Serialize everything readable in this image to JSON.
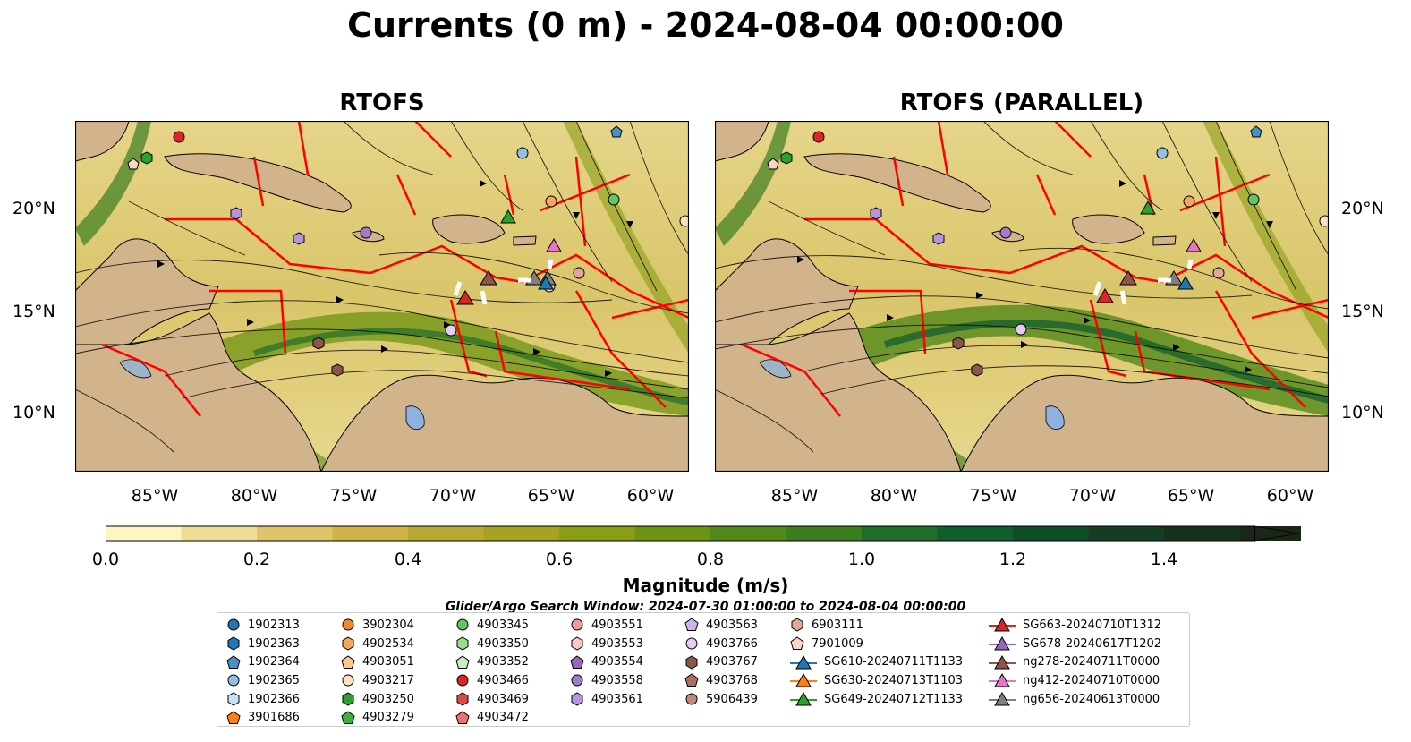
{
  "title": "Currents (0 m) - 2024-08-04 00:00:00",
  "panels": [
    {
      "title": "RTOFS"
    },
    {
      "title": "RTOFS (PARALLEL)"
    }
  ],
  "axes": {
    "lat_labels": [
      "20°N",
      "15°N",
      "10°N"
    ],
    "lon_labels": [
      "85°W",
      "80°W",
      "75°W",
      "70°W",
      "65°W",
      "60°W"
    ]
  },
  "colorbar": {
    "title": "Magnitude (m/s)",
    "tick_labels": [
      "0.0",
      "0.2",
      "0.4",
      "0.6",
      "0.8",
      "1.0",
      "1.2",
      "1.4"
    ],
    "colors": [
      "#fdf6c2",
      "#eedd95",
      "#dfc56a",
      "#d0b448",
      "#b9a832",
      "#a6a224",
      "#899d16",
      "#6e9312",
      "#528819",
      "#3b7d1f",
      "#1f6d2a",
      "#125e2e",
      "#0f4f28",
      "#143d21",
      "#17301b",
      "#1a2618"
    ]
  },
  "search_window": "Glider/Argo Search Window: 2024-07-30 01:00:00 to 2024-08-04 00:00:00",
  "legend": [
    [
      {
        "label": "1902313",
        "shape": "circle",
        "color": "#1f77b4"
      },
      {
        "label": "1902363",
        "shape": "hexagon",
        "color": "#1f77b4"
      },
      {
        "label": "1902364",
        "shape": "pentagon",
        "color": "#4a90c8"
      },
      {
        "label": "1902365",
        "shape": "circle",
        "color": "#8ec0e8"
      },
      {
        "label": "1902366",
        "shape": "hexagon",
        "color": "#c6e0f4"
      },
      {
        "label": "3901686",
        "shape": "pentagon",
        "color": "#ff7f0e"
      }
    ],
    [
      {
        "label": "3902304",
        "shape": "circle",
        "color": "#f08a2c"
      },
      {
        "label": "4902534",
        "shape": "hexagon",
        "color": "#f5a85c"
      },
      {
        "label": "4903051",
        "shape": "pentagon",
        "color": "#fcc68e"
      },
      {
        "label": "4903217",
        "shape": "circle",
        "color": "#fde0bf"
      },
      {
        "label": "4903250",
        "shape": "hexagon",
        "color": "#2ca02c"
      },
      {
        "label": "4903279",
        "shape": "pentagon",
        "color": "#3cb043"
      }
    ],
    [
      {
        "label": "4903345",
        "shape": "circle",
        "color": "#66c266"
      },
      {
        "label": "4903350",
        "shape": "hexagon",
        "color": "#98df8a"
      },
      {
        "label": "4903352",
        "shape": "pentagon",
        "color": "#c8f0c0"
      },
      {
        "label": "4903466",
        "shape": "circle",
        "color": "#d62728"
      },
      {
        "label": "4903469",
        "shape": "hexagon",
        "color": "#e04848"
      },
      {
        "label": "4903472",
        "shape": "pentagon",
        "color": "#f07070"
      }
    ],
    [
      {
        "label": "4903551",
        "shape": "circle",
        "color": "#f29a9a"
      },
      {
        "label": "4903553",
        "shape": "hexagon",
        "color": "#fcc6c6"
      },
      {
        "label": "4903554",
        "shape": "pentagon",
        "color": "#9467bd"
      },
      {
        "label": "4903558",
        "shape": "circle",
        "color": "#a27ccc"
      },
      {
        "label": "4903561",
        "shape": "hexagon",
        "color": "#b496dc"
      }
    ],
    [
      {
        "label": "4903563",
        "shape": "pentagon",
        "color": "#cdb4ee"
      },
      {
        "label": "4903766",
        "shape": "circle",
        "color": "#e2cdf6"
      },
      {
        "label": "4903767",
        "shape": "hexagon",
        "color": "#8c564b"
      },
      {
        "label": "4903768",
        "shape": "pentagon",
        "color": "#a86f62"
      },
      {
        "label": "5906439",
        "shape": "circle",
        "color": "#c08878"
      }
    ],
    [
      {
        "label": "6903111",
        "shape": "hexagon",
        "color": "#e0a898"
      },
      {
        "label": "7901009",
        "shape": "pentagon",
        "color": "#fcd4c8"
      },
      {
        "label": "SG610-20240711T1133",
        "shape": "triangle",
        "color": "#1f77b4"
      },
      {
        "label": "SG630-20240713T1103",
        "shape": "triangle",
        "color": "#ff7f0e"
      },
      {
        "label": "SG649-20240712T1133",
        "shape": "triangle",
        "color": "#2ca02c"
      }
    ],
    [
      {
        "label": "SG663-20240710T1312",
        "shape": "triangle",
        "color": "#d62728"
      },
      {
        "label": "SG678-20240617T1202",
        "shape": "triangle",
        "color": "#9467bd"
      },
      {
        "label": "ng278-20240711T0000",
        "shape": "triangle",
        "color": "#8c564b"
      },
      {
        "label": "ng412-20240710T0000",
        "shape": "triangle",
        "color": "#e377c2"
      },
      {
        "label": "ng656-20240613T0000",
        "shape": "triangle",
        "color": "#7f7f7f"
      }
    ]
  ]
}
